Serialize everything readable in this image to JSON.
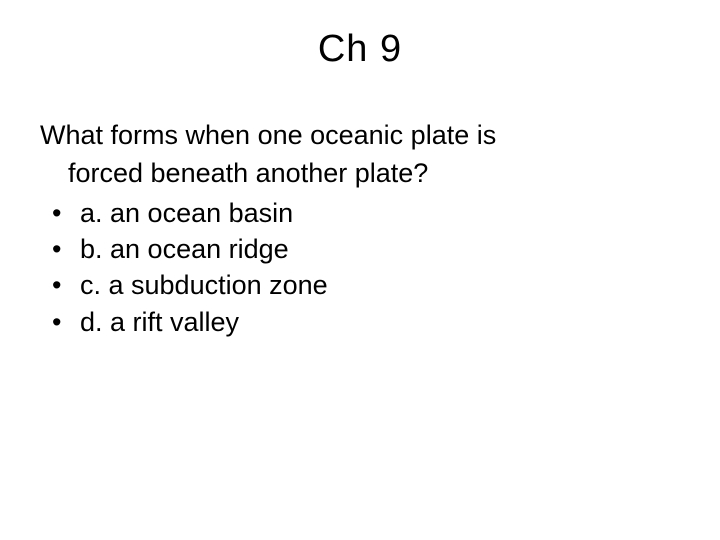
{
  "slide": {
    "title": "Ch 9",
    "question_line1": "What forms when one oceanic plate is",
    "question_line2": "forced beneath another plate?",
    "bullet_char": "•",
    "options": [
      "a. an ocean basin",
      "b. an ocean ridge",
      "c. a subduction zone",
      "d. a rift valley"
    ]
  },
  "style": {
    "background_color": "#ffffff",
    "text_color": "#000000",
    "title_fontsize": 38,
    "body_fontsize": 27,
    "font_family": "Arial"
  }
}
